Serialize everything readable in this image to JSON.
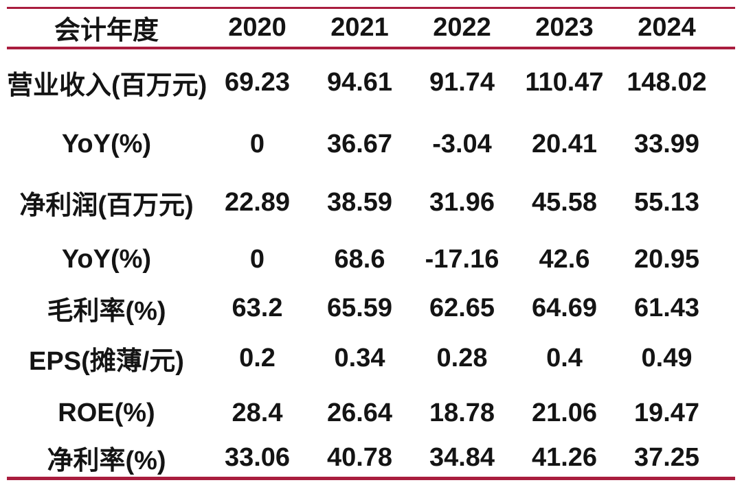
{
  "theme": {
    "accent_line_color": "#A91D3E",
    "text_color": "#141414",
    "background_color": "#FFFFFF"
  },
  "chart_data": {
    "type": "table",
    "title": "",
    "columns": [
      "会计年度",
      "2020",
      "2021",
      "2022",
      "2023",
      "2024"
    ],
    "rows": [
      {
        "label": "营业收入(百万元)",
        "values": [
          69.23,
          94.61,
          91.74,
          110.47,
          148.02
        ]
      },
      {
        "label": "YoY(%)",
        "values": [
          0,
          36.67,
          -3.04,
          20.41,
          33.99
        ]
      },
      {
        "label": "净利润(百万元)",
        "values": [
          22.89,
          38.59,
          31.96,
          45.58,
          55.13
        ]
      },
      {
        "label": "YoY(%)",
        "values": [
          0,
          68.6,
          -17.16,
          42.6,
          20.95
        ]
      },
      {
        "label": "毛利率(%)",
        "values": [
          63.2,
          65.59,
          62.65,
          64.69,
          61.43
        ]
      },
      {
        "label": "EPS(摊薄/元)",
        "values": [
          0.2,
          0.34,
          0.28,
          0.4,
          0.49
        ]
      },
      {
        "label": "ROE(%)",
        "values": [
          28.4,
          26.64,
          18.78,
          21.06,
          19.47
        ]
      },
      {
        "label": "净利率(%)",
        "values": [
          33.06,
          40.78,
          34.84,
          41.26,
          37.25
        ]
      }
    ],
    "layout": {
      "grid": "horizontal-rules-only",
      "header_position": "top",
      "alignment": "center"
    }
  }
}
